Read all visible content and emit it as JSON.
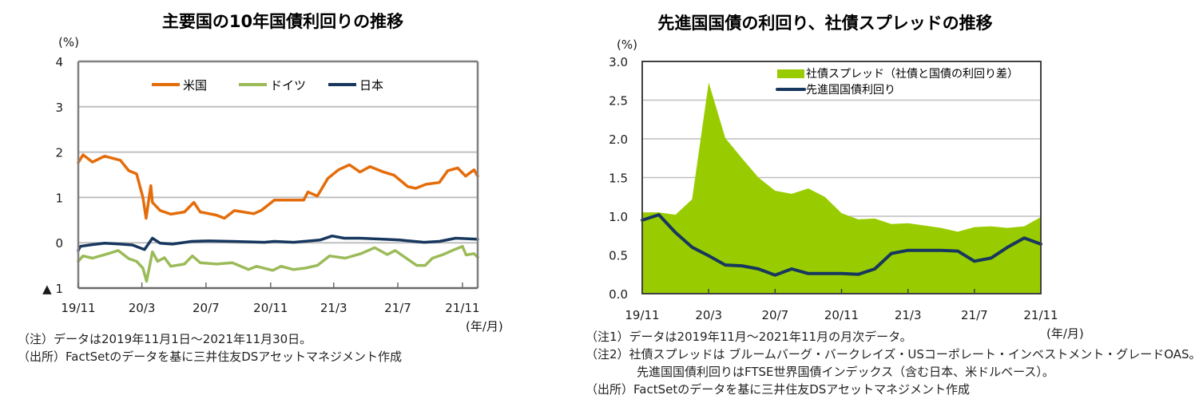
{
  "chart_data": [
    {
      "type": "line",
      "title": "主要国の10年国債利回りの推移",
      "ylabel": "(%)",
      "xlabel": "(年/月)",
      "ylim": [
        -1,
        4
      ],
      "xlim": [
        "2019-11-01",
        "2021-11-30"
      ],
      "grid": true,
      "legend_position": "top-center",
      "yticks": [
        {
          "value": 4,
          "label": "4"
        },
        {
          "value": 3,
          "label": "3"
        },
        {
          "value": 2,
          "label": "2"
        },
        {
          "value": 1,
          "label": "1"
        },
        {
          "value": 0,
          "label": "0"
        },
        {
          "value": -1,
          "label": "▲ 1"
        }
      ],
      "xticks": [
        {
          "date": "2019-11-01",
          "label": "19/11"
        },
        {
          "date": "2020-03-01",
          "label": "20/3"
        },
        {
          "date": "2020-07-01",
          "label": "20/7"
        },
        {
          "date": "2020-11-01",
          "label": "20/11"
        },
        {
          "date": "2021-03-01",
          "label": "21/3"
        },
        {
          "date": "2021-07-01",
          "label": "21/7"
        },
        {
          "date": "2021-11-01",
          "label": "21/11"
        }
      ],
      "series": [
        {
          "name": "米国",
          "key": "us",
          "color": "#E46C0A",
          "points": [
            [
              "2019-11-01",
              1.77
            ],
            [
              "2019-11-10",
              1.94
            ],
            [
              "2019-11-28",
              1.78
            ],
            [
              "2019-12-21",
              1.91
            ],
            [
              "2020-01-20",
              1.82
            ],
            [
              "2020-02-05",
              1.59
            ],
            [
              "2020-02-20",
              1.52
            ],
            [
              "2020-03-03",
              1.0
            ],
            [
              "2020-03-09",
              0.54
            ],
            [
              "2020-03-18",
              1.26
            ],
            [
              "2020-03-21",
              0.89
            ],
            [
              "2020-04-05",
              0.71
            ],
            [
              "2020-04-25",
              0.63
            ],
            [
              "2020-05-21",
              0.68
            ],
            [
              "2020-06-08",
              0.89
            ],
            [
              "2020-06-20",
              0.68
            ],
            [
              "2020-07-21",
              0.61
            ],
            [
              "2020-08-05",
              0.54
            ],
            [
              "2020-08-24",
              0.71
            ],
            [
              "2020-09-20",
              0.66
            ],
            [
              "2020-09-30",
              0.64
            ],
            [
              "2020-10-15",
              0.72
            ],
            [
              "2020-10-28",
              0.84
            ],
            [
              "2020-11-08",
              0.94
            ],
            [
              "2020-12-04",
              0.94
            ],
            [
              "2021-01-03",
              0.94
            ],
            [
              "2021-01-11",
              1.12
            ],
            [
              "2021-01-29",
              1.03
            ],
            [
              "2021-02-18",
              1.42
            ],
            [
              "2021-03-10",
              1.61
            ],
            [
              "2021-03-31",
              1.72
            ],
            [
              "2021-04-20",
              1.56
            ],
            [
              "2021-05-09",
              1.68
            ],
            [
              "2021-06-04",
              1.56
            ],
            [
              "2021-06-24",
              1.49
            ],
            [
              "2021-07-20",
              1.24
            ],
            [
              "2021-08-04",
              1.2
            ],
            [
              "2021-08-24",
              1.29
            ],
            [
              "2021-09-18",
              1.33
            ],
            [
              "2021-10-04",
              1.59
            ],
            [
              "2021-10-23",
              1.65
            ],
            [
              "2021-11-07",
              1.47
            ],
            [
              "2021-11-23",
              1.61
            ],
            [
              "2021-11-30",
              1.47
            ]
          ]
        },
        {
          "name": "ドイツ",
          "key": "germany",
          "color": "#9BBB59",
          "points": [
            [
              "2019-11-01",
              -0.41
            ],
            [
              "2019-11-10",
              -0.29
            ],
            [
              "2019-11-28",
              -0.34
            ],
            [
              "2019-12-28",
              -0.24
            ],
            [
              "2020-01-16",
              -0.17
            ],
            [
              "2020-02-05",
              -0.35
            ],
            [
              "2020-02-20",
              -0.41
            ],
            [
              "2020-03-03",
              -0.56
            ],
            [
              "2020-03-10",
              -0.85
            ],
            [
              "2020-03-21",
              -0.2
            ],
            [
              "2020-03-31",
              -0.41
            ],
            [
              "2020-04-13",
              -0.33
            ],
            [
              "2020-04-25",
              -0.52
            ],
            [
              "2020-05-21",
              -0.47
            ],
            [
              "2020-06-05",
              -0.29
            ],
            [
              "2020-06-20",
              -0.44
            ],
            [
              "2020-07-21",
              -0.47
            ],
            [
              "2020-08-20",
              -0.44
            ],
            [
              "2020-09-20",
              -0.59
            ],
            [
              "2020-10-05",
              -0.52
            ],
            [
              "2020-11-05",
              -0.61
            ],
            [
              "2020-11-21",
              -0.52
            ],
            [
              "2020-12-14",
              -0.59
            ],
            [
              "2021-01-06",
              -0.56
            ],
            [
              "2021-01-29",
              -0.5
            ],
            [
              "2021-02-21",
              -0.29
            ],
            [
              "2021-03-23",
              -0.34
            ],
            [
              "2021-04-22",
              -0.24
            ],
            [
              "2021-05-18",
              -0.11
            ],
            [
              "2021-06-11",
              -0.26
            ],
            [
              "2021-06-26",
              -0.17
            ],
            [
              "2021-07-17",
              -0.34
            ],
            [
              "2021-08-06",
              -0.5
            ],
            [
              "2021-08-22",
              -0.5
            ],
            [
              "2021-09-05",
              -0.34
            ],
            [
              "2021-09-25",
              -0.26
            ],
            [
              "2021-10-17",
              -0.15
            ],
            [
              "2021-11-01",
              -0.08
            ],
            [
              "2021-11-08",
              -0.27
            ],
            [
              "2021-11-23",
              -0.24
            ],
            [
              "2021-11-30",
              -0.32
            ]
          ]
        },
        {
          "name": "日本",
          "key": "japan",
          "color": "#17375E",
          "points": [
            [
              "2019-11-01",
              -0.17
            ],
            [
              "2019-11-05",
              -0.08
            ],
            [
              "2019-11-28",
              -0.04
            ],
            [
              "2019-12-21",
              -0.01
            ],
            [
              "2020-01-20",
              -0.03
            ],
            [
              "2020-02-12",
              -0.05
            ],
            [
              "2020-03-06",
              -0.15
            ],
            [
              "2020-03-21",
              0.1
            ],
            [
              "2020-04-05",
              -0.01
            ],
            [
              "2020-04-28",
              -0.03
            ],
            [
              "2020-06-04",
              0.03
            ],
            [
              "2020-07-05",
              0.04
            ],
            [
              "2020-08-20",
              0.03
            ],
            [
              "2020-10-20",
              0.01
            ],
            [
              "2020-11-08",
              0.03
            ],
            [
              "2020-12-15",
              0.01
            ],
            [
              "2021-02-03",
              0.06
            ],
            [
              "2021-02-26",
              0.15
            ],
            [
              "2021-03-21",
              0.1
            ],
            [
              "2021-04-20",
              0.1
            ],
            [
              "2021-06-04",
              0.08
            ],
            [
              "2021-07-05",
              0.06
            ],
            [
              "2021-08-20",
              0.01
            ],
            [
              "2021-09-18",
              0.03
            ],
            [
              "2021-10-19",
              0.1
            ],
            [
              "2021-11-30",
              0.08
            ]
          ]
        }
      ],
      "notes": [
        "（注）データは2019年11月1日～2021年11月30日。",
        "（出所）FactSetのデータを基に三井住友DSアセットマネジメント作成"
      ]
    },
    {
      "type": "area",
      "title": "先進国国債の利回り、社債スプレッドの推移",
      "ylabel": "(%)",
      "xlabel": "(年/月)",
      "ylim": [
        0,
        3
      ],
      "grid": true,
      "legend_position": "top-right",
      "categories": [
        "2019-11",
        "2019-12",
        "2020-01",
        "2020-02",
        "2020-03",
        "2020-04",
        "2020-05",
        "2020-06",
        "2020-07",
        "2020-08",
        "2020-09",
        "2020-10",
        "2020-11",
        "2020-12",
        "2021-01",
        "2021-02",
        "2021-03",
        "2021-04",
        "2021-05",
        "2021-06",
        "2021-07",
        "2021-08",
        "2021-09",
        "2021-10",
        "2021-11"
      ],
      "yticks": [
        {
          "value": 3.0,
          "label": "3.0"
        },
        {
          "value": 2.5,
          "label": "2.5"
        },
        {
          "value": 2.0,
          "label": "2.0"
        },
        {
          "value": 1.5,
          "label": "1.5"
        },
        {
          "value": 1.0,
          "label": "1.0"
        },
        {
          "value": 0.5,
          "label": "0.5"
        },
        {
          "value": 0.0,
          "label": "0.0"
        }
      ],
      "xticks": [
        {
          "category": "2019-11",
          "label": "19/11"
        },
        {
          "category": "2020-03",
          "label": "20/3"
        },
        {
          "category": "2020-07",
          "label": "20/7"
        },
        {
          "category": "2020-11",
          "label": "20/11"
        },
        {
          "category": "2021-03",
          "label": "21/3"
        },
        {
          "category": "2021-07",
          "label": "21/7"
        },
        {
          "category": "2021-11",
          "label": "21/11"
        }
      ],
      "series": [
        {
          "name": "社債スプレッド（社債と国債の利回り差）",
          "key": "spread",
          "type": "area",
          "color": "#99CC00",
          "values": [
            1.05,
            1.05,
            1.02,
            1.22,
            2.73,
            2.01,
            1.75,
            1.5,
            1.33,
            1.29,
            1.36,
            1.25,
            1.04,
            0.96,
            0.97,
            0.9,
            0.91,
            0.88,
            0.85,
            0.8,
            0.86,
            0.87,
            0.85,
            0.87,
            0.99
          ]
        },
        {
          "name": "先進国国債利回り",
          "key": "yield",
          "type": "line",
          "color": "#17375E",
          "values": [
            0.95,
            1.02,
            0.79,
            0.6,
            0.49,
            0.37,
            0.36,
            0.32,
            0.24,
            0.32,
            0.26,
            0.26,
            0.26,
            0.25,
            0.32,
            0.52,
            0.56,
            0.56,
            0.56,
            0.55,
            0.42,
            0.46,
            0.6,
            0.72,
            0.64
          ]
        }
      ],
      "notes": [
        "（注1）データは2019年11月～2021年11月の月次データ。",
        "（注2）社債スプレッドは ブルームバーグ・バークレイズ・USコーポレート・インベストメント・グレードOAS。",
        "先進国国債利回りはFTSE世界国債インデックス（含む日本、米ドルベース）。",
        "（出所）FactSetのデータを基に三井住友DSアセットマネジメント作成"
      ]
    }
  ]
}
